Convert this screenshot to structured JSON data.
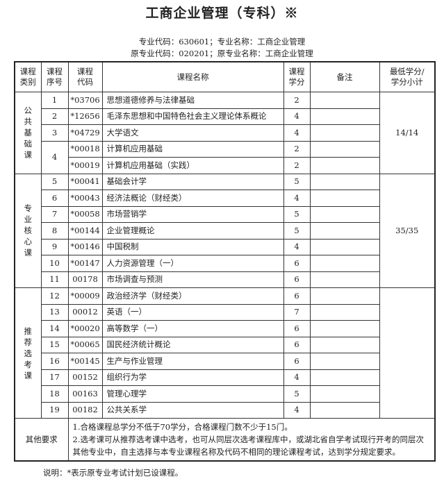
{
  "title": "工商企业管理（专科）※",
  "subtitle_lines": [
    "专业代码：630601；专业名称：工商企业管理",
    "原专业代码：020201；原专业名称：工商企业管理"
  ],
  "headers": [
    "课程\n类别",
    "课程\n序号",
    "课程\n代码",
    "课程名称",
    "课程\n学分",
    "备注",
    "最低学分/\n学分小计"
  ],
  "categories": [
    {
      "label": "公\n共\n基\n础\n课",
      "subtotal": "14/14"
    },
    {
      "label": "专\n业\n核\n心\n课",
      "subtotal": "35/35"
    },
    {
      "label": "推\n荐\n选\n考\n课",
      "subtotal": ""
    }
  ],
  "rows": [
    {
      "no": "1",
      "code": "*03706",
      "name": "思想道德修养与法律基础",
      "credit": "2"
    },
    {
      "no": "2",
      "code": "*12656",
      "name": "毛泽东思想和中国特色社会主义理论体系概论",
      "credit": "4"
    },
    {
      "no": "3",
      "code": "*04729",
      "name": "大学语文",
      "credit": "4"
    },
    {
      "no": "4",
      "code": "*00018",
      "name": "计算机应用基础",
      "credit": "2"
    },
    {
      "no": "",
      "code": "*00019",
      "name": "计算机应用基础（实践）",
      "credit": "2"
    },
    {
      "no": "5",
      "code": "*00041",
      "name": "基础会计学",
      "credit": "5"
    },
    {
      "no": "6",
      "code": "*00043",
      "name": "经济法概论（财经类）",
      "credit": "4"
    },
    {
      "no": "7",
      "code": "*00058",
      "name": "市场营销学",
      "credit": "5"
    },
    {
      "no": "8",
      "code": "*00144",
      "name": "企业管理概论",
      "credit": "5"
    },
    {
      "no": "9",
      "code": "*00146",
      "name": "中国税制",
      "credit": "4"
    },
    {
      "no": "10",
      "code": "*00147",
      "name": "人力资源管理（一）",
      "credit": "6"
    },
    {
      "no": "11",
      "code": "00178",
      "name": "市场调查与预测",
      "credit": "6"
    },
    {
      "no": "12",
      "code": "*00009",
      "name": "政治经济学（财经类）",
      "credit": "6"
    },
    {
      "no": "13",
      "code": "00012",
      "name": "英语（一）",
      "credit": "7"
    },
    {
      "no": "14",
      "code": "*00020",
      "name": "高等数学（一）",
      "credit": "6"
    },
    {
      "no": "15",
      "code": "*00065",
      "name": "国民经济统计概论",
      "credit": "6"
    },
    {
      "no": "16",
      "code": "*00145",
      "name": "生产与作业管理",
      "credit": "6"
    },
    {
      "no": "17",
      "code": "00152",
      "name": "组织行为学",
      "credit": "4"
    },
    {
      "no": "18",
      "code": "00163",
      "name": "管理心理学",
      "credit": "5"
    },
    {
      "no": "19",
      "code": "00182",
      "name": "公共关系学",
      "credit": "4"
    }
  ],
  "other_requirements": {
    "label": "其他要求",
    "lines": [
      "1.合格课程总学分不低于70学分，合格课程门数不少于15门。",
      "2.选考课可从推荐选考课中选考，也可从同层次选考课程库中，或湖北省自学考试现行开考的同层次其他专业中，自主选择与本专业课程名称及代码不相同的理论课程考试，达到学分规定要求。"
    ]
  },
  "note": "说明：*表示原专业考试计划已设课程。"
}
